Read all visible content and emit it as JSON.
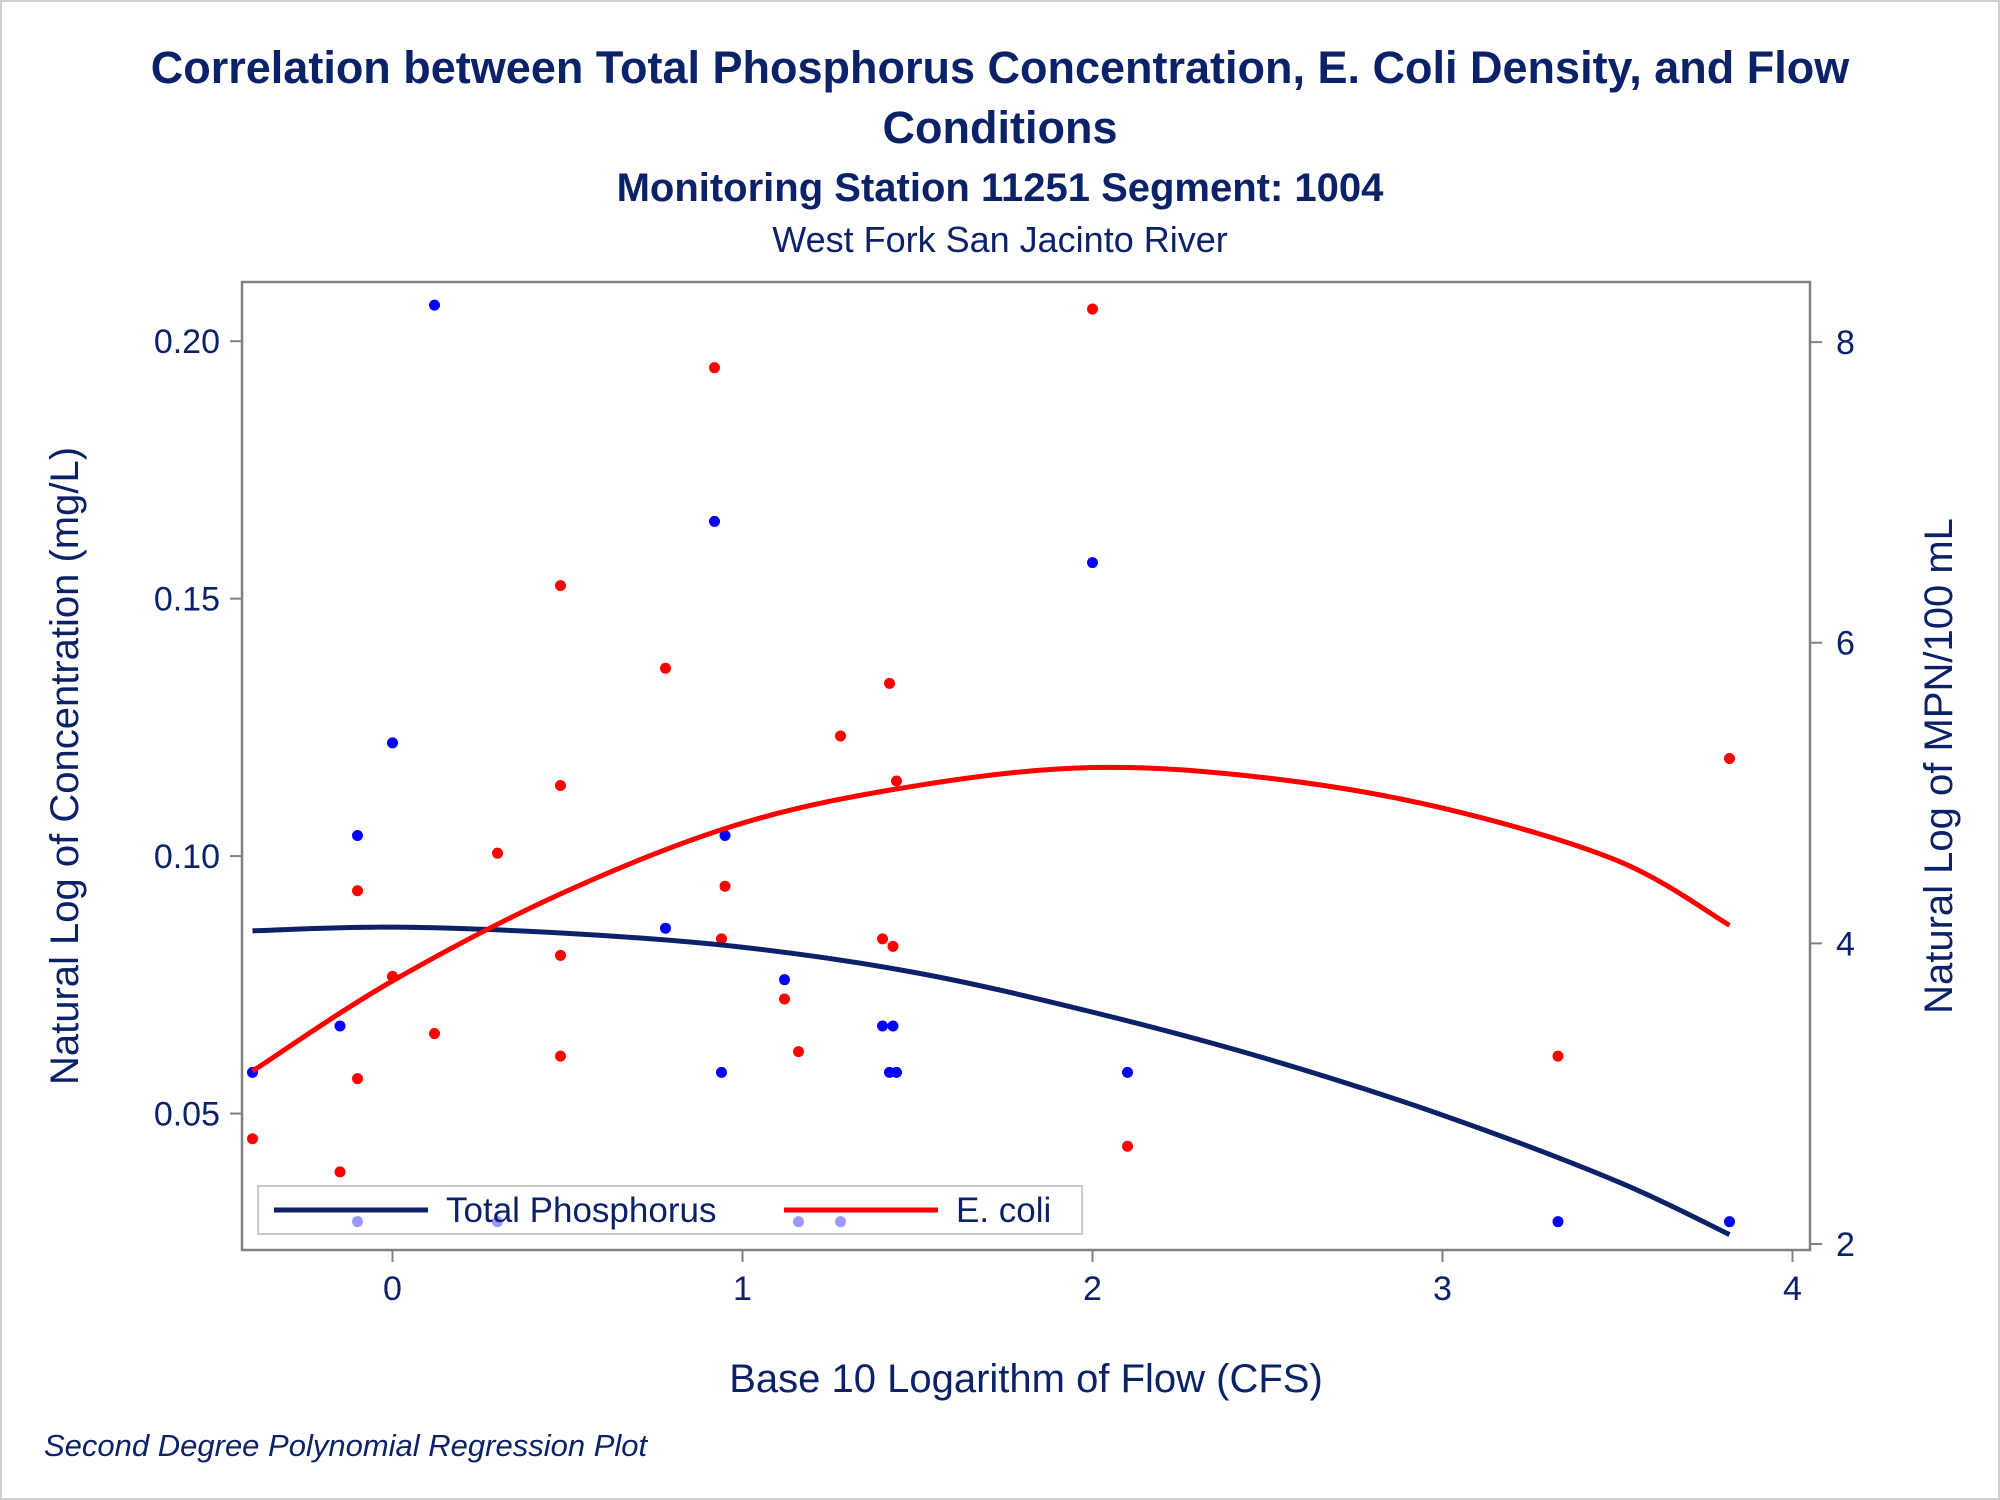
{
  "chart_data": {
    "type": "scatter",
    "title": "Correlation between Total Phosphorus Concentration, E. Coli Density, and Flow Conditions",
    "subtitle": "Monitoring Station 11251 Segment: 1004",
    "subtitle2": "West Fork San Jacinto River",
    "footnote": "Second Degree Polynomial Regression Plot",
    "xlabel": "Base 10 Logarithm of Flow (CFS)",
    "ylabel_left": "Natural Log of Concentration (mg/L)",
    "ylabel_right": "Natural Log of MPN/100 mL",
    "xlim": [
      -0.43,
      4.05
    ],
    "ylim_left": [
      0.0235,
      0.2115
    ],
    "ylim_right": [
      1.96,
      8.4
    ],
    "xticks": [
      "0",
      "1",
      "2",
      "3",
      "4"
    ],
    "yticks_left": [
      "0.05",
      "0.10",
      "0.15",
      "0.20"
    ],
    "yticks_right": [
      "2",
      "4",
      "6",
      "8"
    ],
    "grid": false,
    "legend": {
      "placement": "bottom-left",
      "entries": [
        "Total Phosphorus",
        "E. coli"
      ]
    },
    "colors": {
      "phosphorus_points": "#0000ff",
      "phosphorus_fit": "#0b2269",
      "ecoli": "#ff0000",
      "axis": "#808080",
      "text": "#0b2269"
    },
    "series": [
      {
        "name": "Total Phosphorus",
        "axis": "left",
        "points": [
          [
            -0.4,
            0.058
          ],
          [
            -0.15,
            0.067
          ],
          [
            -0.1,
            0.104
          ],
          [
            -0.1,
            0.029
          ],
          [
            0.0,
            0.122
          ],
          [
            0.12,
            0.207
          ],
          [
            0.3,
            0.029
          ],
          [
            0.78,
            0.086
          ],
          [
            0.92,
            0.165
          ],
          [
            0.94,
            0.058
          ],
          [
            0.95,
            0.104
          ],
          [
            1.12,
            0.076
          ],
          [
            1.16,
            0.029
          ],
          [
            1.28,
            0.029
          ],
          [
            1.4,
            0.067
          ],
          [
            1.42,
            0.058
          ],
          [
            1.43,
            0.067
          ],
          [
            1.44,
            0.058
          ],
          [
            2.0,
            0.157
          ],
          [
            2.1,
            0.058
          ],
          [
            3.33,
            0.029
          ],
          [
            3.82,
            0.029
          ]
        ],
        "fit": [
          [
            -0.4,
            0.0855
          ],
          [
            0.0,
            0.0862
          ],
          [
            0.5,
            0.085
          ],
          [
            1.0,
            0.0823
          ],
          [
            1.5,
            0.0773
          ],
          [
            2.0,
            0.0697
          ],
          [
            2.5,
            0.0606
          ],
          [
            3.0,
            0.0497
          ],
          [
            3.5,
            0.0368
          ],
          [
            3.82,
            0.0265
          ]
        ]
      },
      {
        "name": "E. coli",
        "axis": "right",
        "points": [
          [
            -0.4,
            2.7
          ],
          [
            -0.15,
            2.48
          ],
          [
            -0.1,
            3.1
          ],
          [
            -0.1,
            4.35
          ],
          [
            0.0,
            3.78
          ],
          [
            0.12,
            3.4
          ],
          [
            0.3,
            4.6
          ],
          [
            0.48,
            3.25
          ],
          [
            0.48,
            3.92
          ],
          [
            0.48,
            5.05
          ],
          [
            0.48,
            6.38
          ],
          [
            0.78,
            5.83
          ],
          [
            0.92,
            7.83
          ],
          [
            0.94,
            4.03
          ],
          [
            0.95,
            4.38
          ],
          [
            1.12,
            3.63
          ],
          [
            1.16,
            3.28
          ],
          [
            1.28,
            5.38
          ],
          [
            1.4,
            4.03
          ],
          [
            1.42,
            5.73
          ],
          [
            1.43,
            3.98
          ],
          [
            1.44,
            5.08
          ],
          [
            2.0,
            8.22
          ],
          [
            2.1,
            2.65
          ],
          [
            3.33,
            3.25
          ],
          [
            3.82,
            5.23
          ]
        ],
        "fit": [
          [
            -0.4,
            3.15
          ],
          [
            0.0,
            3.75
          ],
          [
            0.5,
            4.35
          ],
          [
            1.0,
            4.8
          ],
          [
            1.5,
            5.05
          ],
          [
            2.0,
            5.17
          ],
          [
            2.5,
            5.1
          ],
          [
            3.0,
            4.9
          ],
          [
            3.5,
            4.55
          ],
          [
            3.82,
            4.12
          ]
        ]
      }
    ]
  }
}
